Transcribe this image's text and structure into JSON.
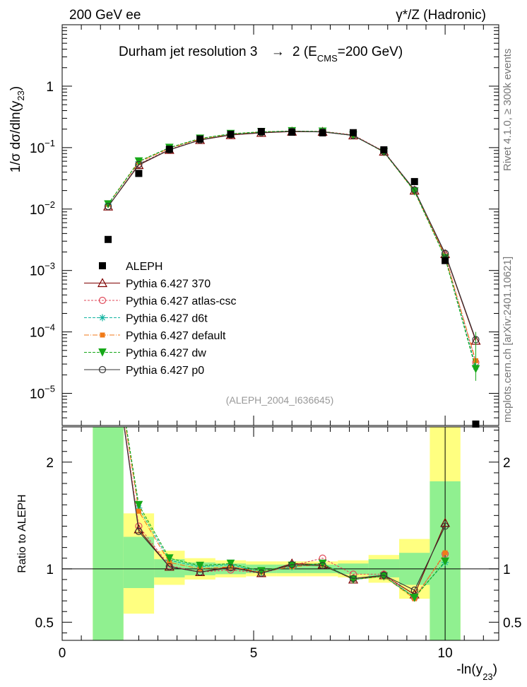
{
  "header": {
    "left": "200 GeV ee",
    "right": "γ*/Z (Hadronic)"
  },
  "side_labels": {
    "rivet": "Rivet 4.1.0, ≥ 300k events",
    "mcplots": "mcplots.cern.ch [arXiv:2401.10621]"
  },
  "chart_data": {
    "type": "line",
    "title": "Durham jet resolution 3 → 2 (E_CMS=200 GeV)",
    "title_parts": {
      "main": "Durham jet resolution 3",
      "arrow": "→",
      "tail": "2 (E",
      "sub": "CMS",
      "end": "=200 GeV)"
    },
    "analysis_tag": "(ALEPH_2004_I636645)",
    "xlabel": "-ln(y23)",
    "xlabel_parts": {
      "main": "-ln(y",
      "sub": "23",
      "end": ")"
    },
    "ylabel_main": "1/σ dσ/dln(y23)",
    "ylabel_main_parts": {
      "main": "1/σ  dσ/dln(y",
      "sub": "23",
      "end": ")"
    },
    "ylabel_ratio": "Ratio to ALEPH",
    "xlim": [
      0,
      11.4
    ],
    "ylim_main": [
      3e-06,
      10
    ],
    "ylim_ratio": [
      0.33,
      2.33
    ],
    "x_ticks": [
      0,
      5,
      10
    ],
    "y_ticks_main": [
      {
        "v": 1,
        "label": "1"
      },
      {
        "v": 0.1,
        "label": "10",
        "exp": "−1"
      },
      {
        "v": 0.01,
        "label": "10",
        "exp": "−2"
      },
      {
        "v": 0.001,
        "label": "10",
        "exp": "−3"
      },
      {
        "v": 0.0001,
        "label": "10",
        "exp": "−4"
      },
      {
        "v": 1e-05,
        "label": "10",
        "exp": "−5"
      }
    ],
    "y_ticks_ratio": [
      {
        "v": 0.5,
        "label": "0.5"
      },
      {
        "v": 1,
        "label": "1"
      },
      {
        "v": 2,
        "label": "2"
      }
    ],
    "data": {
      "name": "ALEPH",
      "x": [
        1.2,
        2.0,
        2.8,
        3.6,
        4.4,
        5.2,
        6.0,
        6.8,
        7.6,
        8.4,
        9.2,
        10.0,
        10.8
      ],
      "y": [
        0.0032,
        0.038,
        0.094,
        0.138,
        0.165,
        0.183,
        0.178,
        0.174,
        0.175,
        0.092,
        0.028,
        0.00145,
        2.8e-06
      ]
    },
    "ratio_bands": {
      "edges": [
        0.8,
        1.6,
        2.4,
        3.2,
        4.0,
        4.8,
        5.6,
        6.4,
        7.2,
        8.0,
        8.8,
        9.6,
        10.4
      ],
      "green": [
        [
          0.33,
          2.33
        ],
        [
          0.82,
          1.3
        ],
        [
          0.92,
          1.09
        ],
        [
          0.94,
          1.06
        ],
        [
          0.95,
          1.05
        ],
        [
          0.96,
          1.04
        ],
        [
          0.96,
          1.04
        ],
        [
          0.96,
          1.04
        ],
        [
          0.95,
          1.05
        ],
        [
          0.92,
          1.09
        ],
        [
          0.85,
          1.15
        ],
        [
          0.33,
          1.82
        ]
      ],
      "yellow": [
        [
          0.33,
          2.33
        ],
        [
          0.58,
          1.52
        ],
        [
          0.85,
          1.17
        ],
        [
          0.9,
          1.1
        ],
        [
          0.92,
          1.08
        ],
        [
          0.93,
          1.07
        ],
        [
          0.93,
          1.07
        ],
        [
          0.93,
          1.07
        ],
        [
          0.92,
          1.08
        ],
        [
          0.87,
          1.13
        ],
        [
          0.72,
          1.28
        ],
        [
          0.33,
          2.33
        ]
      ]
    },
    "series": [
      {
        "name": "Pythia 6.427 370",
        "color": "#7f0000",
        "dash": "",
        "marker": "triangle",
        "y": [
          0.011,
          0.052,
          0.092,
          0.133,
          0.16,
          0.174,
          0.182,
          0.181,
          0.158,
          0.086,
          0.02,
          0.00185,
          7.2e-05
        ],
        "ratio": [
          3.4,
          1.37,
          1.02,
          0.97,
          1.02,
          0.96,
          1.05,
          1.04,
          0.9,
          0.94,
          0.76,
          1.43
        ]
      },
      {
        "name": "Pythia 6.427 atlas-csc",
        "color": "#e04a5a",
        "dash": "3,2",
        "marker": "circle-open",
        "y": [
          0.011,
          0.054,
          0.094,
          0.134,
          0.161,
          0.176,
          0.183,
          0.184,
          0.161,
          0.087,
          0.0205,
          0.00175,
          3.2e-05
        ],
        "ratio": [
          3.4,
          1.4,
          1.03,
          0.97,
          0.99,
          0.96,
          1.03,
          1.1,
          0.95,
          0.95,
          0.73,
          1.14
        ]
      },
      {
        "name": "Pythia 6.427 d6t",
        "color": "#12b3a0",
        "dash": "4,2",
        "marker": "star",
        "y": [
          0.012,
          0.059,
          0.099,
          0.14,
          0.167,
          0.18,
          0.186,
          0.182,
          0.157,
          0.085,
          0.0195,
          0.00165,
          2.7e-05
        ],
        "ratio": [
          3.4,
          1.57,
          1.08,
          1.02,
          1.04,
          0.97,
          1.02,
          1.05,
          0.9,
          0.93,
          0.74,
          1.06
        ]
      },
      {
        "name": "Pythia 6.427 default",
        "color": "#f07a18",
        "dash": "7,2,1,2",
        "marker": "square",
        "y": [
          0.012,
          0.058,
          0.098,
          0.138,
          0.165,
          0.179,
          0.185,
          0.181,
          0.158,
          0.085,
          0.0195,
          0.0017,
          3.4e-05
        ],
        "ratio": [
          3.4,
          1.54,
          1.06,
          1.0,
          1.02,
          0.97,
          1.02,
          1.04,
          0.9,
          0.93,
          0.72,
          1.15
        ]
      },
      {
        "name": "Pythia 6.427 dw",
        "color": "#16a818",
        "dash": "4,2",
        "marker": "triangle-down",
        "y": [
          0.012,
          0.06,
          0.1,
          0.141,
          0.168,
          0.181,
          0.186,
          0.183,
          0.158,
          0.085,
          0.0195,
          0.0016,
          2.5e-05
        ],
        "ratio": [
          3.4,
          1.6,
          1.1,
          1.03,
          1.05,
          0.98,
          1.03,
          1.05,
          0.9,
          0.93,
          0.73,
          1.07
        ]
      },
      {
        "name": "Pythia 6.427 p0",
        "color": "#333333",
        "dash": "",
        "marker": "circle-open",
        "y": [
          0.011,
          0.053,
          0.092,
          0.133,
          0.162,
          0.175,
          0.184,
          0.18,
          0.158,
          0.086,
          0.0205,
          0.0019,
          7.5e-05
        ],
        "ratio": [
          3.4,
          1.35,
          1.02,
          0.97,
          1.01,
          0.96,
          1.04,
          1.03,
          0.91,
          0.94,
          0.8,
          1.4
        ]
      }
    ]
  }
}
